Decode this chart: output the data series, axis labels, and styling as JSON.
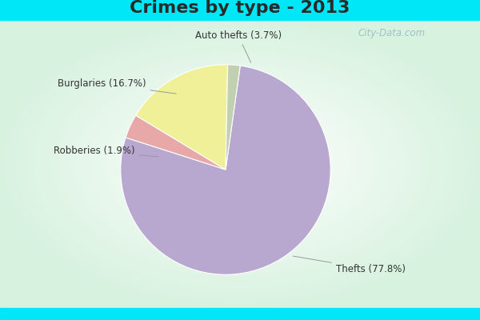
{
  "title": "Crimes by type - 2013",
  "slices": [
    {
      "label": "Thefts",
      "pct": 77.8,
      "color": "#b8a8d0"
    },
    {
      "label": "Auto thefts",
      "pct": 3.7,
      "color": "#e8a8a8"
    },
    {
      "label": "Burglaries",
      "pct": 16.7,
      "color": "#f0f098"
    },
    {
      "label": "Robberies",
      "pct": 1.9,
      "color": "#c0d0b0"
    }
  ],
  "title_fontsize": 16,
  "title_color": "#2a2a2a",
  "background_cyan": "#00e8f8",
  "watermark": "City-Data.com",
  "annotation_color": "#333333",
  "line_color": "#999999"
}
